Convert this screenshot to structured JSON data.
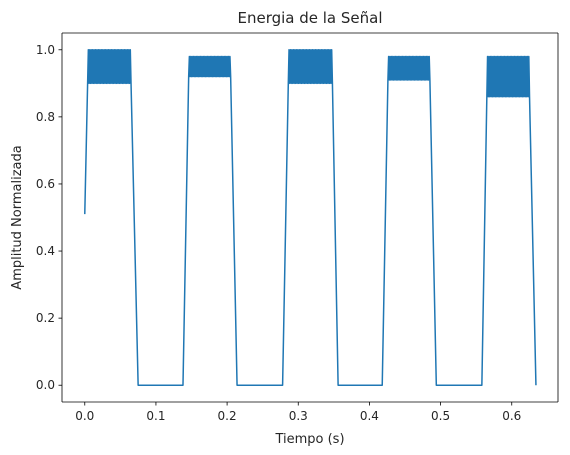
{
  "chart_data": {
    "type": "line",
    "title": "Energia de la Señal",
    "xlabel": "Tiempo (s)",
    "ylabel": "Amplitud Normalizada",
    "xlim": [
      -0.032,
      0.665
    ],
    "ylim": [
      -0.05,
      1.05
    ],
    "xticks": [
      0.0,
      0.1,
      0.2,
      0.3,
      0.4,
      0.5,
      0.6
    ],
    "yticks": [
      0.0,
      0.2,
      0.4,
      0.6,
      0.8,
      1.0
    ],
    "grid": false,
    "legend": "none",
    "series": [
      {
        "color": "#1f77b4",
        "segments": [
          {
            "kind": "ramp",
            "x": [
              0.0,
              0.004
            ],
            "y": [
              0.51,
              0.9
            ]
          },
          {
            "kind": "oscillation",
            "x": [
              0.004,
              0.065
            ],
            "low": 0.9,
            "high": 1.0
          },
          {
            "kind": "ramp",
            "x": [
              0.065,
              0.075
            ],
            "y": [
              0.9,
              0.0
            ]
          },
          {
            "kind": "flat",
            "x": [
              0.075,
              0.138
            ],
            "y": 0.0
          },
          {
            "kind": "ramp",
            "x": [
              0.138,
              0.146
            ],
            "y": [
              0.0,
              0.92
            ]
          },
          {
            "kind": "oscillation",
            "x": [
              0.146,
              0.205
            ],
            "low": 0.92,
            "high": 0.98
          },
          {
            "kind": "ramp",
            "x": [
              0.205,
              0.214
            ],
            "y": [
              0.92,
              0.0
            ]
          },
          {
            "kind": "flat",
            "x": [
              0.214,
              0.278
            ],
            "y": 0.0
          },
          {
            "kind": "ramp",
            "x": [
              0.278,
              0.286
            ],
            "y": [
              0.0,
              0.9
            ]
          },
          {
            "kind": "oscillation",
            "x": [
              0.286,
              0.348
            ],
            "low": 0.9,
            "high": 1.0
          },
          {
            "kind": "ramp",
            "x": [
              0.348,
              0.356
            ],
            "y": [
              0.9,
              0.0
            ]
          },
          {
            "kind": "flat",
            "x": [
              0.356,
              0.418
            ],
            "y": 0.0
          },
          {
            "kind": "ramp",
            "x": [
              0.418,
              0.426
            ],
            "y": [
              0.0,
              0.91
            ]
          },
          {
            "kind": "oscillation",
            "x": [
              0.426,
              0.485
            ],
            "low": 0.91,
            "high": 0.98
          },
          {
            "kind": "ramp",
            "x": [
              0.485,
              0.494
            ],
            "y": [
              0.91,
              0.0
            ]
          },
          {
            "kind": "flat",
            "x": [
              0.494,
              0.558
            ],
            "y": 0.0
          },
          {
            "kind": "ramp",
            "x": [
              0.558,
              0.565
            ],
            "y": [
              0.0,
              0.86
            ]
          },
          {
            "kind": "oscillation",
            "x": [
              0.565,
              0.625
            ],
            "low": 0.86,
            "high": 0.98
          },
          {
            "kind": "ramp",
            "x": [
              0.625,
              0.634
            ],
            "y": [
              0.86,
              0.0
            ]
          }
        ]
      }
    ]
  }
}
